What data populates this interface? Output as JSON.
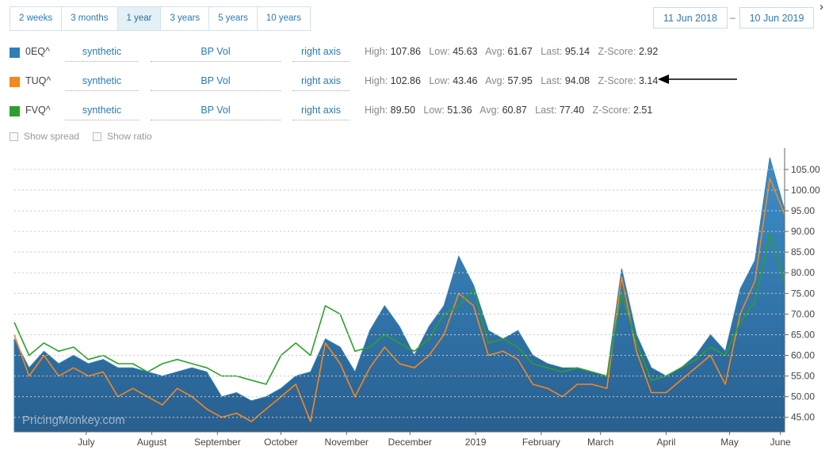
{
  "range_tabs": [
    "2 weeks",
    "3 months",
    "1 year",
    "3 years",
    "5 years",
    "10 years"
  ],
  "active_tab": "1 year",
  "date_from": "11 Jun 2018",
  "date_sep": "–",
  "date_to": "10 Jun 2019",
  "series_rows": [
    {
      "ticker": "0EQ^",
      "color": "#2f7fb7",
      "method": "synthetic",
      "measure": "BP Vol",
      "axis": "right axis",
      "high": "107.86",
      "low": "45.63",
      "avg": "61.67",
      "last": "95.14",
      "zscore": "2.92"
    },
    {
      "ticker": "TUQ^",
      "color": "#f5871f",
      "method": "synthetic",
      "measure": "BP Vol",
      "axis": "right axis",
      "high": "102.86",
      "low": "43.46",
      "avg": "57.95",
      "last": "94.08",
      "zscore": "3.14"
    },
    {
      "ticker": "FVQ^",
      "color": "#2ca02c",
      "method": "synthetic",
      "measure": "BP Vol",
      "axis": "right axis",
      "high": "89.50",
      "low": "51.36",
      "avg": "60.87",
      "last": "77.40",
      "zscore": "2.51"
    }
  ],
  "stat_labels": {
    "high": "High:",
    "low": "Low:",
    "avg": "Avg:",
    "last": "Last:",
    "zscore": "Z-Score:"
  },
  "options": {
    "show_spread": "Show spread",
    "show_ratio": "Show ratio"
  },
  "watermark": "PricingMonkey.com",
  "chart_data": {
    "type": "area",
    "x_start": "2018-06-11",
    "x_end": "2019-06-10",
    "month_labels": [
      {
        "label": "July",
        "date": "2018-07-15"
      },
      {
        "label": "August",
        "date": "2018-08-15"
      },
      {
        "label": "September",
        "date": "2018-09-15"
      },
      {
        "label": "October",
        "date": "2018-10-15"
      },
      {
        "label": "November",
        "date": "2018-11-15"
      },
      {
        "label": "December",
        "date": "2018-12-15"
      },
      {
        "label": "2019",
        "date": "2019-01-15"
      },
      {
        "label": "February",
        "date": "2019-02-15"
      },
      {
        "label": "March",
        "date": "2019-03-15"
      },
      {
        "label": "April",
        "date": "2019-04-15"
      },
      {
        "label": "May",
        "date": "2019-05-15"
      },
      {
        "label": "June",
        "date": "2019-06-08"
      }
    ],
    "ylim": [
      41.5,
      109
    ],
    "yticks": [
      "45.00",
      "50.00",
      "55.00",
      "60.00",
      "65.00",
      "70.00",
      "75.00",
      "80.00",
      "85.00",
      "90.00",
      "95.00",
      "100.00",
      "105.00"
    ],
    "grid": true,
    "series": [
      {
        "name": "0EQ^",
        "color": "#2f7fb7",
        "style": "area",
        "points": [
          [
            "2018-06-11",
            64
          ],
          [
            "2018-06-18",
            57
          ],
          [
            "2018-06-25",
            61
          ],
          [
            "2018-07-02",
            58
          ],
          [
            "2018-07-09",
            60
          ],
          [
            "2018-07-16",
            58
          ],
          [
            "2018-07-23",
            59
          ],
          [
            "2018-07-30",
            57
          ],
          [
            "2018-08-06",
            57
          ],
          [
            "2018-08-13",
            56
          ],
          [
            "2018-08-20",
            55
          ],
          [
            "2018-08-27",
            56
          ],
          [
            "2018-09-03",
            57
          ],
          [
            "2018-09-10",
            56
          ],
          [
            "2018-09-17",
            50
          ],
          [
            "2018-09-24",
            51
          ],
          [
            "2018-10-01",
            49
          ],
          [
            "2018-10-08",
            50
          ],
          [
            "2018-10-15",
            52
          ],
          [
            "2018-10-22",
            55
          ],
          [
            "2018-10-29",
            56
          ],
          [
            "2018-11-05",
            64
          ],
          [
            "2018-11-12",
            62
          ],
          [
            "2018-11-19",
            56
          ],
          [
            "2018-11-26",
            66
          ],
          [
            "2018-12-03",
            72
          ],
          [
            "2018-12-10",
            67
          ],
          [
            "2018-12-17",
            60
          ],
          [
            "2018-12-24",
            67
          ],
          [
            "2018-12-31",
            72
          ],
          [
            "2019-01-07",
            84
          ],
          [
            "2019-01-14",
            77
          ],
          [
            "2019-01-21",
            66
          ],
          [
            "2019-01-28",
            64
          ],
          [
            "2019-02-04",
            66
          ],
          [
            "2019-02-11",
            60
          ],
          [
            "2019-02-18",
            58
          ],
          [
            "2019-02-25",
            57
          ],
          [
            "2019-03-04",
            57
          ],
          [
            "2019-03-11",
            56
          ],
          [
            "2019-03-18",
            55
          ],
          [
            "2019-03-25",
            81
          ],
          [
            "2019-04-01",
            65
          ],
          [
            "2019-04-08",
            57
          ],
          [
            "2019-04-15",
            55
          ],
          [
            "2019-04-22",
            57
          ],
          [
            "2019-04-29",
            60
          ],
          [
            "2019-05-06",
            65
          ],
          [
            "2019-05-13",
            61
          ],
          [
            "2019-05-20",
            76
          ],
          [
            "2019-05-27",
            83
          ],
          [
            "2019-06-03",
            107.86
          ],
          [
            "2019-06-10",
            95.14
          ]
        ]
      },
      {
        "name": "TUQ^",
        "color": "#f5871f",
        "style": "line",
        "points": [
          [
            "2018-06-11",
            65
          ],
          [
            "2018-06-18",
            55
          ],
          [
            "2018-06-25",
            60
          ],
          [
            "2018-07-02",
            55
          ],
          [
            "2018-07-09",
            57
          ],
          [
            "2018-07-16",
            55
          ],
          [
            "2018-07-23",
            56
          ],
          [
            "2018-07-30",
            50
          ],
          [
            "2018-08-06",
            52
          ],
          [
            "2018-08-13",
            50
          ],
          [
            "2018-08-20",
            48
          ],
          [
            "2018-08-27",
            52
          ],
          [
            "2018-09-03",
            50
          ],
          [
            "2018-09-10",
            47
          ],
          [
            "2018-09-17",
            45
          ],
          [
            "2018-09-24",
            46
          ],
          [
            "2018-10-01",
            44
          ],
          [
            "2018-10-08",
            47
          ],
          [
            "2018-10-15",
            50
          ],
          [
            "2018-10-22",
            53
          ],
          [
            "2018-10-29",
            44
          ],
          [
            "2018-11-05",
            63
          ],
          [
            "2018-11-12",
            58
          ],
          [
            "2018-11-19",
            50
          ],
          [
            "2018-11-26",
            57
          ],
          [
            "2018-12-03",
            62
          ],
          [
            "2018-12-10",
            58
          ],
          [
            "2018-12-17",
            57
          ],
          [
            "2018-12-24",
            60
          ],
          [
            "2018-12-31",
            65
          ],
          [
            "2019-01-07",
            75
          ],
          [
            "2019-01-14",
            72
          ],
          [
            "2019-01-21",
            60
          ],
          [
            "2019-01-28",
            61
          ],
          [
            "2019-02-04",
            59
          ],
          [
            "2019-02-11",
            53
          ],
          [
            "2019-02-18",
            52
          ],
          [
            "2019-02-25",
            50
          ],
          [
            "2019-03-04",
            53
          ],
          [
            "2019-03-11",
            53
          ],
          [
            "2019-03-18",
            52
          ],
          [
            "2019-03-25",
            79
          ],
          [
            "2019-04-01",
            61
          ],
          [
            "2019-04-08",
            51
          ],
          [
            "2019-04-15",
            51
          ],
          [
            "2019-04-22",
            54
          ],
          [
            "2019-04-29",
            57
          ],
          [
            "2019-05-06",
            60
          ],
          [
            "2019-05-13",
            53
          ],
          [
            "2019-05-20",
            70
          ],
          [
            "2019-05-27",
            78
          ],
          [
            "2019-06-03",
            102.86
          ],
          [
            "2019-06-10",
            94.08
          ]
        ]
      },
      {
        "name": "FVQ^",
        "color": "#2ca02c",
        "style": "line",
        "points": [
          [
            "2018-06-11",
            68
          ],
          [
            "2018-06-18",
            60
          ],
          [
            "2018-06-25",
            63
          ],
          [
            "2018-07-02",
            61
          ],
          [
            "2018-07-09",
            62
          ],
          [
            "2018-07-16",
            59
          ],
          [
            "2018-07-23",
            60
          ],
          [
            "2018-07-30",
            58
          ],
          [
            "2018-08-06",
            58
          ],
          [
            "2018-08-13",
            56
          ],
          [
            "2018-08-20",
            58
          ],
          [
            "2018-08-27",
            59
          ],
          [
            "2018-09-03",
            58
          ],
          [
            "2018-09-10",
            57
          ],
          [
            "2018-09-17",
            55
          ],
          [
            "2018-09-24",
            55
          ],
          [
            "2018-10-01",
            54
          ],
          [
            "2018-10-08",
            53
          ],
          [
            "2018-10-15",
            60
          ],
          [
            "2018-10-22",
            63
          ],
          [
            "2018-10-29",
            60
          ],
          [
            "2018-11-05",
            72
          ],
          [
            "2018-11-12",
            70
          ],
          [
            "2018-11-19",
            61
          ],
          [
            "2018-11-26",
            62
          ],
          [
            "2018-12-03",
            65
          ],
          [
            "2018-12-10",
            63
          ],
          [
            "2018-12-17",
            61
          ],
          [
            "2018-12-24",
            64
          ],
          [
            "2018-12-31",
            70
          ],
          [
            "2019-01-07",
            72
          ],
          [
            "2019-01-14",
            76
          ],
          [
            "2019-01-21",
            63
          ],
          [
            "2019-01-28",
            64
          ],
          [
            "2019-02-04",
            62
          ],
          [
            "2019-02-11",
            58
          ],
          [
            "2019-02-18",
            57
          ],
          [
            "2019-02-25",
            56
          ],
          [
            "2019-03-04",
            57
          ],
          [
            "2019-03-11",
            56
          ],
          [
            "2019-03-18",
            55
          ],
          [
            "2019-03-25",
            75
          ],
          [
            "2019-04-01",
            63
          ],
          [
            "2019-04-08",
            54
          ],
          [
            "2019-04-15",
            55
          ],
          [
            "2019-04-22",
            57
          ],
          [
            "2019-04-29",
            59
          ],
          [
            "2019-05-06",
            62
          ],
          [
            "2019-05-13",
            60
          ],
          [
            "2019-05-20",
            68
          ],
          [
            "2019-05-27",
            73
          ],
          [
            "2019-06-03",
            89.5
          ],
          [
            "2019-06-10",
            77.4
          ]
        ]
      }
    ]
  }
}
